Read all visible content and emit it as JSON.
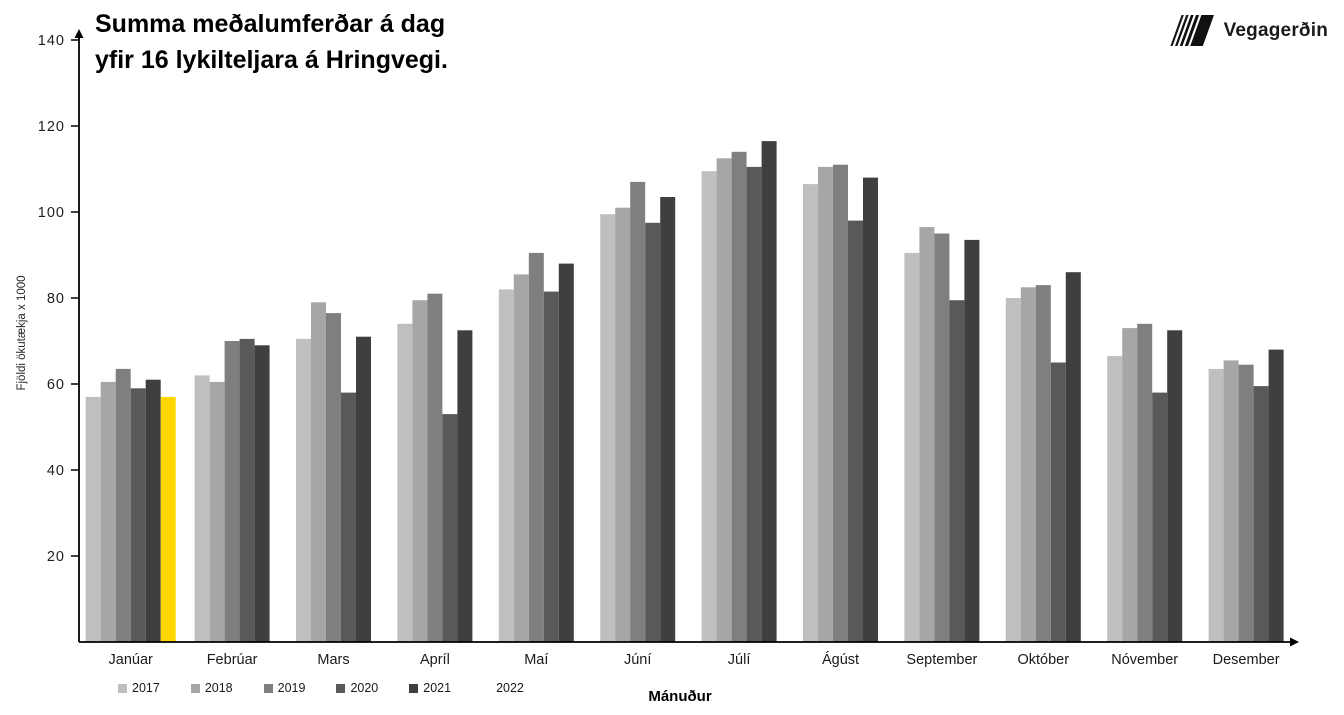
{
  "header": {
    "title_line1": "Summa meðalumferðar á dag",
    "title_line2": "yfir 16 lykilteljara á Hringvegi.",
    "logo_text": "Vegagerðin"
  },
  "chart_data": {
    "type": "bar",
    "title": "Summa meðalumferðar á dag yfir 16 lykilteljara á Hringvegi.",
    "xlabel": "Mánuður",
    "ylabel": "Fjöldi ökutækja x 1000",
    "ylim": [
      0,
      140
    ],
    "y_ticks": [
      20,
      40,
      60,
      80,
      100,
      120,
      140
    ],
    "grid": false,
    "legend_position": "bottom-left",
    "categories": [
      "Janúar",
      "Febrúar",
      "Mars",
      "Apríl",
      "Maí",
      "Júní",
      "Júlí",
      "Ágúst",
      "September",
      "Október",
      "Nóvember",
      "Desember"
    ],
    "series": [
      {
        "name": "2017",
        "color": "#bfbfbf",
        "legend_swatch_visible": true,
        "values": [
          57,
          62,
          70.5,
          74,
          82,
          99.5,
          109.5,
          106.5,
          90.5,
          80,
          66.5,
          63.5
        ]
      },
      {
        "name": "2018",
        "color": "#a6a6a6",
        "legend_swatch_visible": true,
        "values": [
          60.5,
          60.5,
          79,
          79.5,
          85.5,
          101,
          112.5,
          110.5,
          96.5,
          82.5,
          73,
          65.5
        ]
      },
      {
        "name": "2019",
        "color": "#7f7f7f",
        "legend_swatch_visible": true,
        "values": [
          63.5,
          70,
          76.5,
          81,
          90.5,
          107,
          114,
          111,
          95,
          83,
          74,
          64.5
        ]
      },
      {
        "name": "2020",
        "color": "#595959",
        "legend_swatch_visible": true,
        "values": [
          59,
          70.5,
          58,
          53,
          81.5,
          97.5,
          110.5,
          98,
          79.5,
          65,
          58,
          59.5
        ]
      },
      {
        "name": "2021",
        "color": "#3f3f3f",
        "legend_swatch_visible": true,
        "values": [
          61,
          69,
          71,
          72.5,
          88,
          103.5,
          116.5,
          108,
          93.5,
          86,
          72.5,
          68
        ]
      },
      {
        "name": "2022",
        "color": "#ffd600",
        "legend_swatch_visible": false,
        "values": [
          57,
          null,
          null,
          null,
          null,
          null,
          null,
          null,
          null,
          null,
          null,
          null
        ]
      }
    ]
  }
}
